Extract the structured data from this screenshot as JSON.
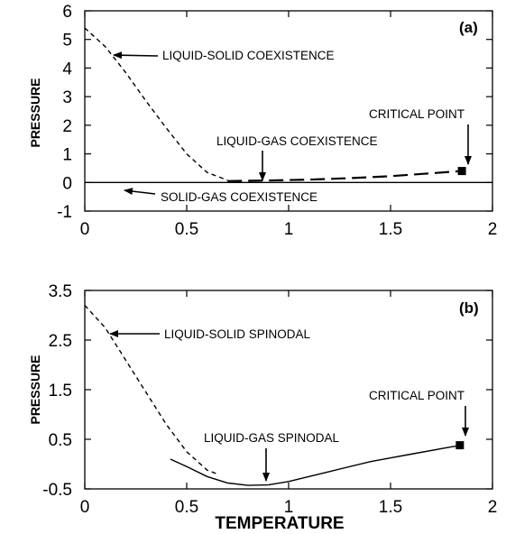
{
  "chart_data": [
    {
      "panel_label": "(a)",
      "type": "line",
      "xlabel": "",
      "ylabel": "PRESSURE",
      "xlim": [
        0,
        2
      ],
      "ylim": [
        -1,
        6
      ],
      "x_ticks": [
        "0",
        "0.5",
        "1",
        "1.5",
        "2"
      ],
      "y_ticks": [
        "-1",
        "0",
        "1",
        "2",
        "3",
        "4",
        "5",
        "6"
      ],
      "series": [
        {
          "x": [
            0.0,
            0.1,
            0.2,
            0.3,
            0.4,
            0.5,
            0.6,
            0.7
          ],
          "y": [
            5.4,
            4.75,
            3.85,
            2.85,
            1.9,
            1.0,
            0.35,
            0.08
          ],
          "style": "dashed"
        },
        {
          "x": [
            0.7,
            0.9,
            1.1,
            1.3,
            1.5,
            1.7,
            1.85
          ],
          "y": [
            0.05,
            0.07,
            0.1,
            0.15,
            0.22,
            0.32,
            0.4
          ],
          "style": "long-dashed"
        },
        {
          "x": [
            0.0,
            0.5,
            1.0,
            1.5,
            2.0
          ],
          "y": [
            0.0,
            0.0,
            0.0,
            0.0,
            0.0
          ],
          "style": "solid"
        }
      ],
      "critical_point": {
        "x": 1.85,
        "y": 0.4
      },
      "annotations": [
        {
          "text": "LIQUID-SOLID COEXISTENCE"
        },
        {
          "text": "LIQUID-GAS COEXISTENCE"
        },
        {
          "text": "CRITICAL POINT"
        },
        {
          "text": "SOLID-GAS COEXISTENCE"
        }
      ]
    },
    {
      "panel_label": "(b)",
      "type": "line",
      "xlabel": "TEMPERATURE",
      "ylabel": "PRESSURE",
      "xlim": [
        0,
        2
      ],
      "ylim": [
        -0.5,
        3.5
      ],
      "x_ticks": [
        "0",
        "0.5",
        "1",
        "1.5",
        "2"
      ],
      "y_ticks": [
        "-0.5",
        "0.5",
        "1.5",
        "2.5",
        "3.5"
      ],
      "series": [
        {
          "x": [
            0.0,
            0.1,
            0.2,
            0.3,
            0.4,
            0.5,
            0.6,
            0.65
          ],
          "y": [
            3.2,
            2.75,
            2.1,
            1.45,
            0.8,
            0.25,
            -0.12,
            -0.2
          ],
          "style": "dashed"
        },
        {
          "x": [
            0.42,
            0.5,
            0.6,
            0.7,
            0.8,
            0.9,
            1.0,
            1.2,
            1.4,
            1.6,
            1.8,
            1.85
          ],
          "y": [
            0.1,
            -0.05,
            -0.25,
            -0.38,
            -0.43,
            -0.42,
            -0.35,
            -0.15,
            0.05,
            0.2,
            0.35,
            0.38
          ],
          "style": "solid"
        }
      ],
      "critical_point": {
        "x": 1.84,
        "y": 0.38
      },
      "annotations": [
        {
          "text": "LIQUID-SOLID SPINODAL"
        },
        {
          "text": "LIQUID-GAS SPINODAL"
        },
        {
          "text": "CRITICAL POINT"
        }
      ]
    }
  ]
}
